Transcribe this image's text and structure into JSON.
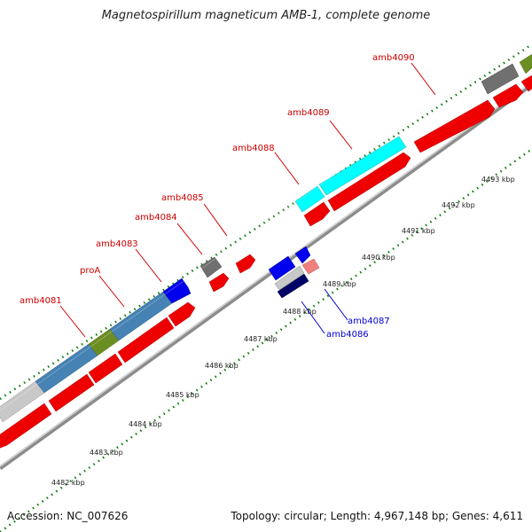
{
  "title": "Magnetospirillum magneticum AMB-1, complete genome",
  "footer": {
    "accession": "Accession: NC_007626",
    "genome_info": "Topology: circular; Length: 4,967,148 bp; Genes: 4,611"
  },
  "colors": {
    "forward_label": "#cc0000",
    "reverse_label": "#0000cc",
    "cds": "#ff0000",
    "gene_cyan": "#00ffff",
    "gene_blue": "#0000ee",
    "gene_steelblue": "#4682b4",
    "gene_olive": "#6b8e23",
    "gene_gray": "#707070",
    "gene_lightgray": "#c0c0c0",
    "gene_navy": "#000066",
    "gene_pink": "#f08080",
    "tick": "#006400",
    "backbone": "#9a9a9a"
  },
  "scale_labels": [
    "4482 kbp",
    "4483 kbp",
    "4484 kbp",
    "4485 kbp",
    "4486 kbp",
    "4487 kbp",
    "4488 kbp",
    "4489 kbp",
    "4490 kbp",
    "4491 kbp",
    "4492 kbp",
    "4493 kbp"
  ],
  "forward_genes": [
    "amb4081",
    "proA",
    "amb4083",
    "amb4084",
    "amb4085",
    "amb4088",
    "amb4089",
    "amb4090"
  ],
  "reverse_genes": [
    "amb4086",
    "amb4087"
  ]
}
